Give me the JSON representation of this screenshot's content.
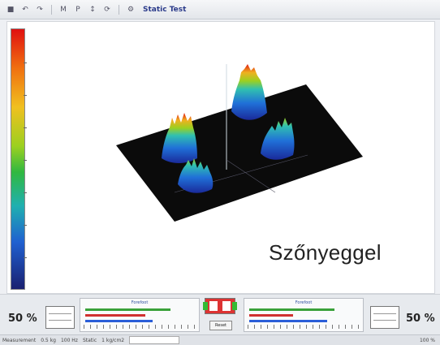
{
  "toolbar": {
    "items": [
      "file-icon",
      "undo-icon",
      "redo-icon",
      "bold-icon",
      "italic-icon",
      "arrow-icon",
      "refresh-icon",
      "settings-icon"
    ],
    "title": "Static Test"
  },
  "viewport": {
    "caption": "Szőnyeggel",
    "colorbar_colors": [
      "#e01010",
      "#f07010",
      "#f0c020",
      "#9cd020",
      "#30b840",
      "#20b0b0",
      "#2060d0",
      "#1a2070"
    ]
  },
  "bottom": {
    "left_percent": "50 %",
    "right_percent": "50 %",
    "left_gauge_caption": "Forefoot",
    "right_gauge_caption": "Forefoot",
    "left_bars": [
      {
        "color": "#3aa13a",
        "fraction": 0.78
      },
      {
        "color": "#d03030",
        "fraction": 0.55
      },
      {
        "color": "#2a5ed8",
        "fraction": 0.62
      }
    ],
    "right_bars": [
      {
        "color": "#3aa13a",
        "fraction": 0.78
      },
      {
        "color": "#d03030",
        "fraction": 0.4
      },
      {
        "color": "#2a5ed8",
        "fraction": 0.72
      }
    ],
    "center_button": "Reset"
  },
  "status": {
    "segments": [
      "Measurement",
      "0.5 kg",
      "100 Hz",
      "Static",
      "1 kg/cm2"
    ],
    "right_value": "100 %"
  }
}
